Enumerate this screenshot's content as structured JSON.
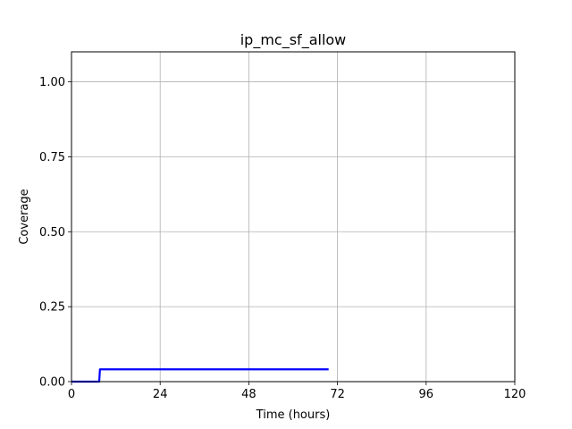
{
  "chart_data": {
    "type": "line",
    "title": "ip_mc_sf_allow",
    "xlabel": "Time (hours)",
    "ylabel": "Coverage",
    "xlim": [
      0,
      120
    ],
    "ylim": [
      0,
      1.1
    ],
    "x_ticks": [
      0,
      24,
      48,
      72,
      96,
      120
    ],
    "x_tick_labels": [
      "0",
      "24",
      "48",
      "72",
      "96",
      "120"
    ],
    "y_ticks": [
      0,
      0.25,
      0.5,
      0.75,
      1.0
    ],
    "y_tick_labels": [
      "0.00",
      "0.25",
      "0.50",
      "0.75",
      "1.00"
    ],
    "grid": true,
    "series": [
      {
        "color": "#0000ff",
        "x": [
          0,
          7.5,
          7.7,
          69.6
        ],
        "y": [
          0,
          0,
          0.041,
          0.041
        ]
      }
    ]
  }
}
